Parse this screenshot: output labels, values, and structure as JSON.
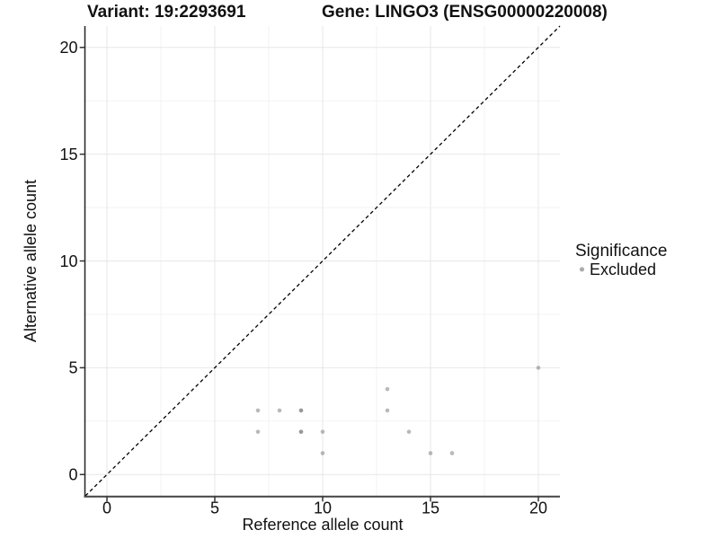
{
  "titles": {
    "variant": "Variant: 19:2293691",
    "gene": "Gene: LINGO3 (ENSG00000220008)"
  },
  "chart_data": {
    "type": "scatter",
    "xlabel": "Reference allele count",
    "ylabel": "Alternative allele count",
    "xlim": [
      -1,
      21
    ],
    "ylim": [
      -1,
      21
    ],
    "x_breaks": [
      0,
      5,
      10,
      15,
      20
    ],
    "y_breaks": [
      0,
      5,
      10,
      15,
      20
    ],
    "x_minor_breaks": [
      2.5,
      7.5,
      12.5,
      17.5
    ],
    "y_minor_breaks": [
      2.5,
      7.5,
      12.5,
      17.5
    ],
    "grid": true,
    "identity_line": {
      "style": "dashed",
      "from": [
        -1,
        -1
      ],
      "to": [
        21,
        21
      ],
      "color": "#000000"
    },
    "series": [
      {
        "name": "Excluded",
        "color": "#808080",
        "opacity": 0.55,
        "point_radius": 2.3,
        "points": [
          [
            7,
            2
          ],
          [
            7,
            3
          ],
          [
            8,
            3
          ],
          [
            9,
            2
          ],
          [
            9,
            2
          ],
          [
            9,
            3
          ],
          [
            9,
            3
          ],
          [
            10,
            1
          ],
          [
            10,
            2
          ],
          [
            13,
            3
          ],
          [
            13,
            4
          ],
          [
            14,
            2
          ],
          [
            15,
            1
          ],
          [
            16,
            1
          ],
          [
            20,
            5
          ]
        ]
      }
    ],
    "legend": {
      "position": "right",
      "title": "Significance",
      "items": [
        {
          "label": "Excluded",
          "color": "#808080"
        }
      ]
    },
    "colors": {
      "grid_major": "#e7e7e7",
      "grid_minor": "#f3f3f3",
      "axis_line": "#333333",
      "tick_mark": "#333333",
      "text": "#111111"
    }
  }
}
